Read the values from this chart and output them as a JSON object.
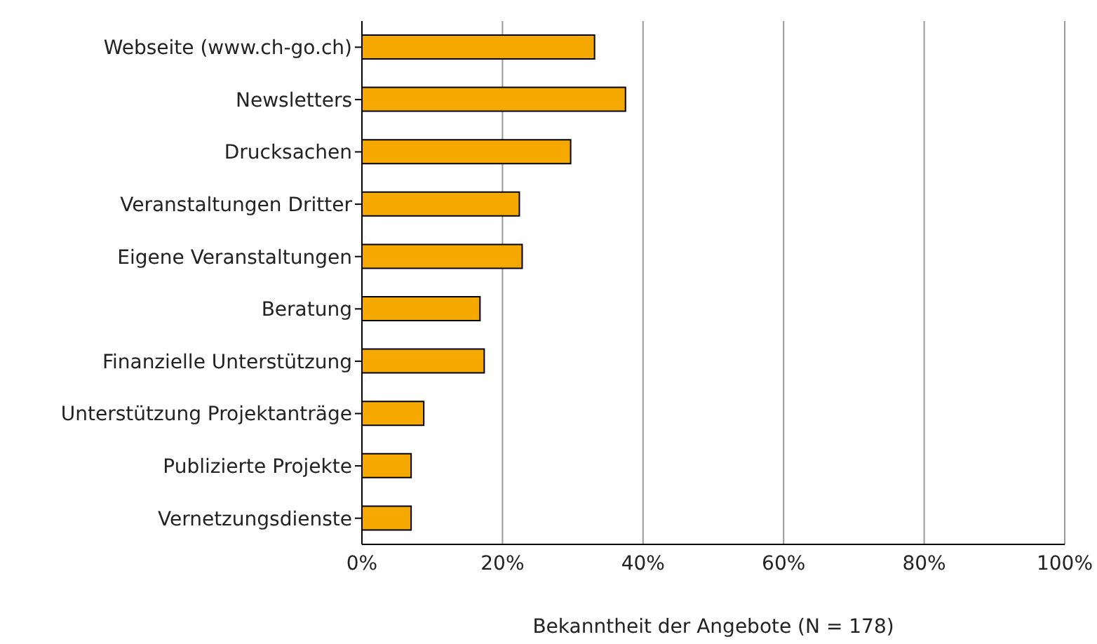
{
  "chart_data": {
    "type": "bar",
    "orientation": "horizontal",
    "xlabel": "Bekanntheit der Angebote (N = 178)",
    "categories": [
      "Webseite (www.ch-go.ch)",
      "Newsletters",
      "Drucksachen",
      "Veranstaltungen Dritter",
      "Eigene Veranstaltungen",
      "Beratung",
      "Finanzielle Unterstützung",
      "Unterstützung Projektanträge",
      "Publizierte Projekte",
      "Vernetzungsdienste"
    ],
    "values": [
      33.1,
      37.5,
      29.7,
      22.4,
      22.8,
      16.8,
      17.4,
      8.8,
      7.0,
      7.0
    ],
    "color": "#f5a800",
    "xlim": [
      0,
      100
    ],
    "xticks": [
      {
        "value": 0,
        "label": "0%"
      },
      {
        "value": 20,
        "label": "20%"
      },
      {
        "value": 40,
        "label": "40%"
      },
      {
        "value": 60,
        "label": "60%"
      },
      {
        "value": 80,
        "label": "80%"
      },
      {
        "value": 100,
        "label": "100%"
      }
    ],
    "grid": "x",
    "legend": false
  }
}
